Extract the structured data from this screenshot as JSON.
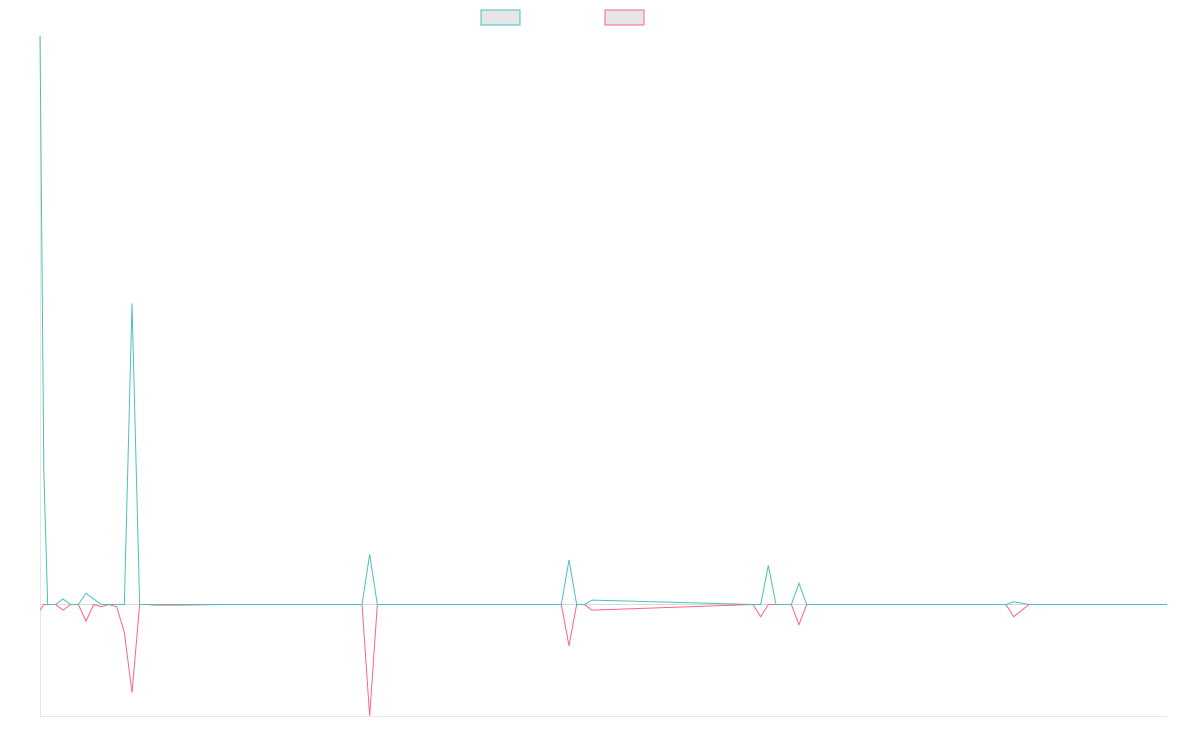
{
  "colors": {
    "series_a": "#4bc0c0",
    "series_b": "#ff6384",
    "swatch_fill": "#e6e6e6",
    "axis": "#e6e6e6"
  },
  "chart_data": {
    "type": "line",
    "title": "",
    "xlabel": "",
    "ylabel": "",
    "grid": false,
    "legend_position": "top-center",
    "x": [
      0,
      0.5,
      1,
      2,
      3,
      4,
      5,
      6,
      7,
      8,
      9,
      10,
      11,
      12,
      13,
      14,
      15,
      18,
      24,
      42,
      43,
      44,
      68,
      69,
      70,
      71,
      72,
      93,
      94,
      95,
      96,
      97,
      98,
      99,
      100,
      125,
      126,
      127,
      129,
      130,
      131,
      147
    ],
    "ylim": [
      -1000,
      5100
    ],
    "series": [
      {
        "values": [
          5100,
          1200,
          0,
          0,
          50,
          0,
          0,
          100,
          50,
          0,
          0,
          0,
          0,
          2700,
          0,
          0,
          0,
          0,
          0,
          0,
          450,
          0,
          0,
          400,
          0,
          0,
          40,
          0,
          0,
          350,
          0,
          0,
          0,
          190,
          0,
          0,
          0,
          25,
          0,
          0,
          0,
          0
        ]
      },
      {
        "values": [
          -50,
          0,
          0,
          0,
          -50,
          0,
          0,
          -150,
          0,
          -20,
          0,
          -20,
          -250,
          -790,
          0,
          0,
          -5,
          -5,
          0,
          0,
          -1000,
          0,
          0,
          -370,
          0,
          0,
          -50,
          0,
          -110,
          0,
          0,
          0,
          0,
          -180,
          0,
          0,
          0,
          -110,
          0,
          0,
          0,
          0
        ]
      }
    ]
  }
}
